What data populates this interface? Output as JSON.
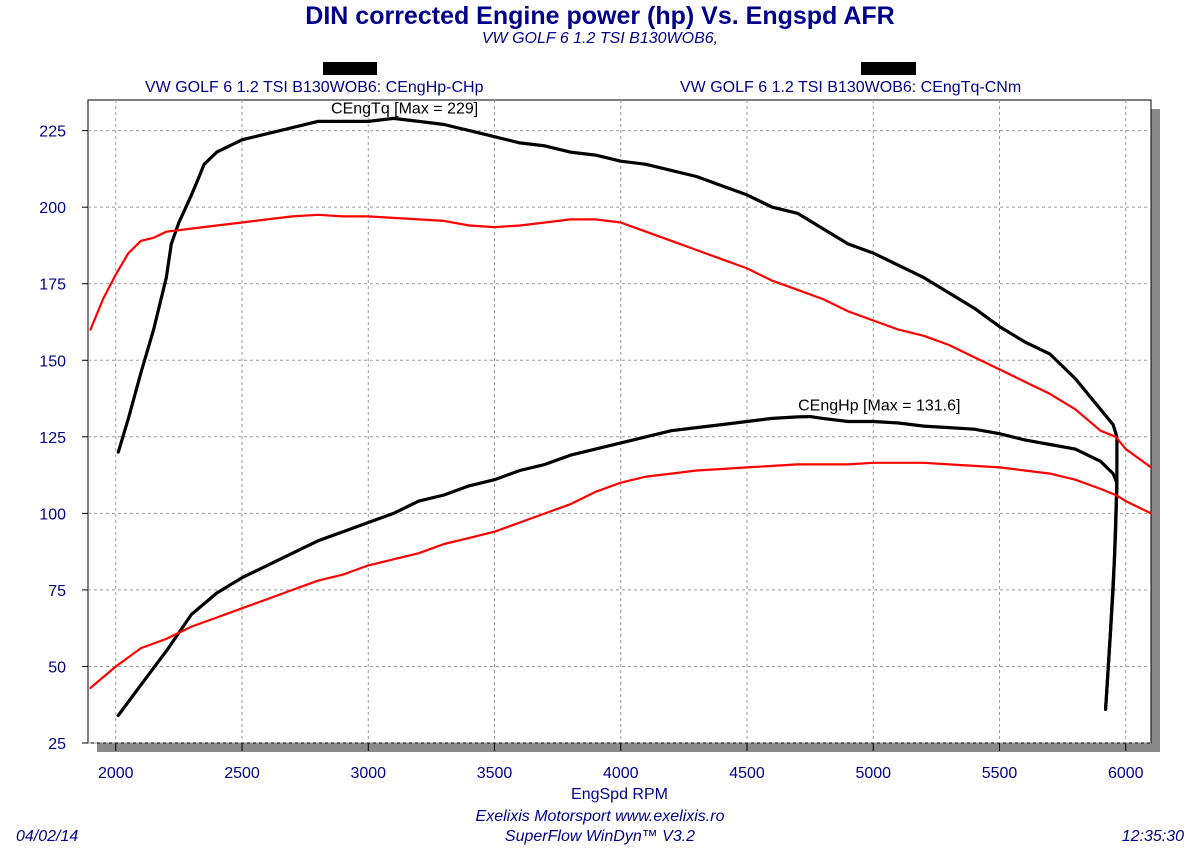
{
  "header": {
    "title": "DIN corrected Engine power (hp) Vs. Engspd AFR",
    "subtitle": "VW GOLF 6 1.2 TSI B130WOB6,"
  },
  "legend": [
    {
      "label": "VW GOLF 6 1.2 TSI B130WOB6: CEngHp-CHp"
    },
    {
      "label": "VW GOLF 6 1.2 TSI B130WOB6: CEngTq-CNm"
    }
  ],
  "footer": {
    "date": "04/02/14",
    "line1": "Exelixis Motorsport www.exelixis.ro",
    "line2": "SuperFlow WinDyn™ V3.2",
    "time": "12:35:30"
  },
  "chart_data": {
    "type": "line",
    "xlabel": "EngSpd RPM",
    "ylabel": "",
    "xlim": [
      1890,
      6100
    ],
    "ylim": [
      25,
      235
    ],
    "x_ticks": [
      2000,
      2500,
      3000,
      3500,
      4000,
      4500,
      5000,
      5500,
      6000
    ],
    "y_ticks": [
      25,
      50,
      75,
      100,
      125,
      150,
      175,
      200,
      225
    ],
    "grid": true,
    "annotations": [
      {
        "text": "CEngTq [Max = 229]",
        "x": 2900,
        "y": 230
      },
      {
        "text": "CEngHp [Max = 131.6]",
        "x": 4750,
        "y": 133
      }
    ],
    "series": [
      {
        "name": "CEngTq",
        "color": "#000000",
        "points": [
          [
            2010,
            120
          ],
          [
            2050,
            131
          ],
          [
            2100,
            146
          ],
          [
            2150,
            160
          ],
          [
            2200,
            177
          ],
          [
            2220,
            188
          ],
          [
            2250,
            195
          ],
          [
            2300,
            204
          ],
          [
            2320,
            208
          ],
          [
            2350,
            214
          ],
          [
            2400,
            218
          ],
          [
            2500,
            222
          ],
          [
            2600,
            224
          ],
          [
            2700,
            226
          ],
          [
            2800,
            228
          ],
          [
            2900,
            228
          ],
          [
            3000,
            228
          ],
          [
            3100,
            229
          ],
          [
            3200,
            228
          ],
          [
            3300,
            227
          ],
          [
            3400,
            225
          ],
          [
            3500,
            223
          ],
          [
            3600,
            221
          ],
          [
            3700,
            220
          ],
          [
            3800,
            218
          ],
          [
            3900,
            217
          ],
          [
            4000,
            215
          ],
          [
            4100,
            214
          ],
          [
            4200,
            212
          ],
          [
            4300,
            210
          ],
          [
            4400,
            207
          ],
          [
            4500,
            204
          ],
          [
            4600,
            200
          ],
          [
            4700,
            198
          ],
          [
            4800,
            193
          ],
          [
            4900,
            188
          ],
          [
            5000,
            185
          ],
          [
            5100,
            181
          ],
          [
            5200,
            177
          ],
          [
            5300,
            172
          ],
          [
            5400,
            167
          ],
          [
            5500,
            161
          ],
          [
            5600,
            156
          ],
          [
            5700,
            152
          ],
          [
            5800,
            144
          ],
          [
            5900,
            134
          ],
          [
            5950,
            129
          ],
          [
            5965,
            125
          ],
          [
            5965,
            110
          ],
          [
            5955,
            85
          ],
          [
            5940,
            62
          ],
          [
            5920,
            36
          ]
        ]
      },
      {
        "name": "CEngHp",
        "color": "#000000",
        "points": [
          [
            2010,
            34
          ],
          [
            2100,
            44
          ],
          [
            2200,
            55
          ],
          [
            2300,
            67
          ],
          [
            2400,
            74
          ],
          [
            2500,
            79
          ],
          [
            2600,
            83
          ],
          [
            2700,
            87
          ],
          [
            2800,
            91
          ],
          [
            2900,
            94
          ],
          [
            3000,
            97
          ],
          [
            3100,
            100
          ],
          [
            3200,
            104
          ],
          [
            3300,
            106
          ],
          [
            3400,
            109
          ],
          [
            3500,
            111
          ],
          [
            3600,
            114
          ],
          [
            3700,
            116
          ],
          [
            3800,
            119
          ],
          [
            3900,
            121
          ],
          [
            4000,
            123
          ],
          [
            4100,
            125
          ],
          [
            4200,
            127
          ],
          [
            4300,
            128
          ],
          [
            4400,
            129
          ],
          [
            4500,
            130
          ],
          [
            4600,
            131
          ],
          [
            4700,
            131.5
          ],
          [
            4750,
            131.6
          ],
          [
            4800,
            131
          ],
          [
            4900,
            130
          ],
          [
            5000,
            130
          ],
          [
            5100,
            129.5
          ],
          [
            5200,
            128.5
          ],
          [
            5300,
            128
          ],
          [
            5400,
            127.5
          ],
          [
            5500,
            126
          ],
          [
            5600,
            124
          ],
          [
            5700,
            122.5
          ],
          [
            5800,
            121
          ],
          [
            5900,
            117
          ],
          [
            5950,
            113
          ],
          [
            5965,
            110
          ],
          [
            5960,
            95
          ],
          [
            5950,
            75
          ],
          [
            5935,
            55
          ],
          [
            5920,
            36
          ]
        ]
      },
      {
        "name": "CEngTq-CNm",
        "color": "#FF0000",
        "points": [
          [
            1900,
            160
          ],
          [
            1950,
            170
          ],
          [
            2000,
            178
          ],
          [
            2050,
            185
          ],
          [
            2100,
            189
          ],
          [
            2150,
            190
          ],
          [
            2200,
            192
          ],
          [
            2300,
            193
          ],
          [
            2400,
            194
          ],
          [
            2500,
            195
          ],
          [
            2600,
            196
          ],
          [
            2700,
            197
          ],
          [
            2800,
            197.5
          ],
          [
            2900,
            197
          ],
          [
            3000,
            197
          ],
          [
            3100,
            196.5
          ],
          [
            3200,
            196
          ],
          [
            3300,
            195.5
          ],
          [
            3400,
            194
          ],
          [
            3500,
            193.5
          ],
          [
            3600,
            194
          ],
          [
            3700,
            195
          ],
          [
            3800,
            196
          ],
          [
            3900,
            196
          ],
          [
            4000,
            195
          ],
          [
            4100,
            192
          ],
          [
            4200,
            189
          ],
          [
            4300,
            186
          ],
          [
            4400,
            183
          ],
          [
            4500,
            180
          ],
          [
            4600,
            176
          ],
          [
            4700,
            173
          ],
          [
            4800,
            170
          ],
          [
            4900,
            166
          ],
          [
            5000,
            163
          ],
          [
            5100,
            160
          ],
          [
            5200,
            158
          ],
          [
            5300,
            155
          ],
          [
            5400,
            151
          ],
          [
            5500,
            147
          ],
          [
            5600,
            143
          ],
          [
            5700,
            139
          ],
          [
            5800,
            134
          ],
          [
            5900,
            127
          ],
          [
            5960,
            125
          ],
          [
            6000,
            121
          ],
          [
            6050,
            118
          ],
          [
            6100,
            115
          ]
        ]
      },
      {
        "name": "CEngHp-CHp",
        "color": "#FF0000",
        "points": [
          [
            1900,
            43
          ],
          [
            2000,
            50
          ],
          [
            2100,
            56
          ],
          [
            2200,
            59
          ],
          [
            2300,
            63
          ],
          [
            2400,
            66
          ],
          [
            2500,
            69
          ],
          [
            2600,
            72
          ],
          [
            2700,
            75
          ],
          [
            2800,
            78
          ],
          [
            2900,
            80
          ],
          [
            3000,
            83
          ],
          [
            3100,
            85
          ],
          [
            3200,
            87
          ],
          [
            3300,
            90
          ],
          [
            3400,
            92
          ],
          [
            3500,
            94
          ],
          [
            3600,
            97
          ],
          [
            3700,
            100
          ],
          [
            3800,
            103
          ],
          [
            3900,
            107
          ],
          [
            4000,
            110
          ],
          [
            4100,
            112
          ],
          [
            4200,
            113
          ],
          [
            4300,
            114
          ],
          [
            4400,
            114.5
          ],
          [
            4500,
            115
          ],
          [
            4600,
            115.5
          ],
          [
            4700,
            116
          ],
          [
            4800,
            116
          ],
          [
            4900,
            116
          ],
          [
            5000,
            116.5
          ],
          [
            5100,
            116.5
          ],
          [
            5200,
            116.5
          ],
          [
            5300,
            116
          ],
          [
            5400,
            115.5
          ],
          [
            5500,
            115
          ],
          [
            5600,
            114
          ],
          [
            5700,
            113
          ],
          [
            5800,
            111
          ],
          [
            5900,
            108
          ],
          [
            5960,
            106
          ],
          [
            6000,
            104
          ],
          [
            6050,
            102
          ],
          [
            6100,
            100
          ]
        ]
      }
    ]
  }
}
